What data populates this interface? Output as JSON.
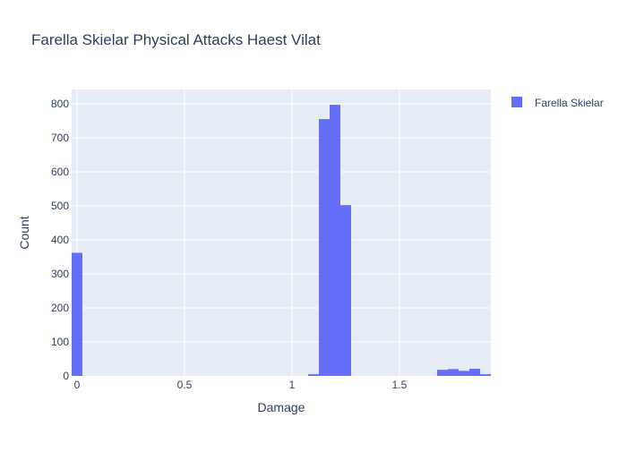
{
  "chart_data": {
    "type": "bar",
    "title": "Farella Skielar Physical Attacks Haest Vilat",
    "xlabel": "Damage",
    "ylabel": "Count",
    "xlim": [
      -0.025,
      1.925
    ],
    "ylim": [
      0,
      842
    ],
    "x_ticks": [
      0,
      0.5,
      1,
      1.5
    ],
    "x_tick_labels": [
      "0",
      "0.5",
      "1",
      "1.5"
    ],
    "y_ticks": [
      0,
      100,
      200,
      300,
      400,
      500,
      600,
      700,
      800
    ],
    "y_tick_labels": [
      "0",
      "100",
      "200",
      "300",
      "400",
      "500",
      "600",
      "700",
      "800"
    ],
    "bin_width": 0.05,
    "grid": true,
    "legend_position": "top-right",
    "series": [
      {
        "name": "Farella Skielar",
        "color": "#636efa",
        "bins": [
          {
            "x0": -0.025,
            "x1": 0.025,
            "count": 362
          },
          {
            "x0": 1.075,
            "x1": 1.125,
            "count": 5
          },
          {
            "x0": 1.125,
            "x1": 1.175,
            "count": 755
          },
          {
            "x0": 1.175,
            "x1": 1.225,
            "count": 797
          },
          {
            "x0": 1.225,
            "x1": 1.275,
            "count": 502
          },
          {
            "x0": 1.675,
            "x1": 1.725,
            "count": 18
          },
          {
            "x0": 1.725,
            "x1": 1.775,
            "count": 20
          },
          {
            "x0": 1.775,
            "x1": 1.825,
            "count": 15
          },
          {
            "x0": 1.825,
            "x1": 1.875,
            "count": 21
          },
          {
            "x0": 1.875,
            "x1": 1.925,
            "count": 5
          }
        ]
      }
    ]
  }
}
